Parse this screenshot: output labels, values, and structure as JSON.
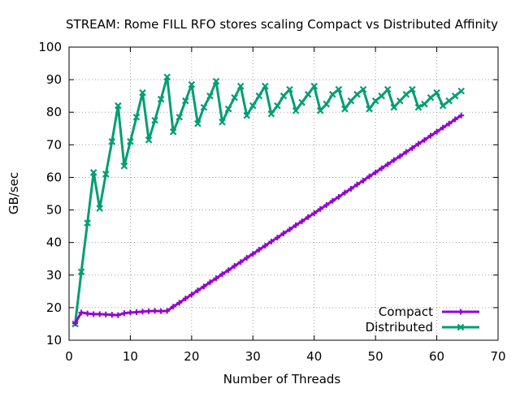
{
  "chart_data": {
    "type": "line",
    "title": "STREAM: Rome FILL RFO stores scaling Compact vs Distributed Affinity",
    "xlabel": "Number of Threads",
    "ylabel": "GB/sec",
    "xlim": [
      0,
      70
    ],
    "ylim": [
      10,
      100
    ],
    "xticks": [
      0,
      10,
      20,
      30,
      40,
      50,
      60,
      70
    ],
    "yticks": [
      10,
      20,
      30,
      40,
      50,
      60,
      70,
      80,
      90,
      100
    ],
    "grid": true,
    "legend_position": "bottom-right",
    "series": [
      {
        "name": "Compact",
        "color": "#9400d3",
        "marker": "plus",
        "x": [
          1,
          2,
          3,
          4,
          5,
          6,
          7,
          8,
          9,
          10,
          11,
          12,
          13,
          14,
          15,
          16,
          17,
          18,
          19,
          20,
          21,
          22,
          23,
          24,
          25,
          26,
          27,
          28,
          29,
          30,
          31,
          32,
          33,
          34,
          35,
          36,
          37,
          38,
          39,
          40,
          41,
          42,
          43,
          44,
          45,
          46,
          47,
          48,
          49,
          50,
          51,
          52,
          53,
          54,
          55,
          56,
          57,
          58,
          59,
          60,
          61,
          62,
          63,
          64
        ],
        "y": [
          15.2,
          18.5,
          18.2,
          18.0,
          18.0,
          17.9,
          17.8,
          17.7,
          18.3,
          18.5,
          18.6,
          18.8,
          18.9,
          19.0,
          18.9,
          19.0,
          20.3,
          21.5,
          22.8,
          24.0,
          25.3,
          26.5,
          27.8,
          29.0,
          30.3,
          31.5,
          32.8,
          34.0,
          35.3,
          36.5,
          37.8,
          39.0,
          40.3,
          41.5,
          42.8,
          44.0,
          45.3,
          46.5,
          47.8,
          49.0,
          50.3,
          51.5,
          52.8,
          54.0,
          55.3,
          56.5,
          57.8,
          59.0,
          60.3,
          61.5,
          62.8,
          64.0,
          65.3,
          66.5,
          67.8,
          69.0,
          70.3,
          71.5,
          72.8,
          74.0,
          75.3,
          76.5,
          77.8,
          79.0
        ]
      },
      {
        "name": "Distributed",
        "color": "#009e73",
        "marker": "x",
        "x": [
          1,
          2,
          3,
          4,
          5,
          6,
          7,
          8,
          9,
          10,
          11,
          12,
          13,
          14,
          15,
          16,
          17,
          18,
          19,
          20,
          21,
          22,
          23,
          24,
          25,
          26,
          27,
          28,
          29,
          30,
          31,
          32,
          33,
          34,
          35,
          36,
          37,
          38,
          39,
          40,
          41,
          42,
          43,
          44,
          45,
          46,
          47,
          48,
          49,
          50,
          51,
          52,
          53,
          54,
          55,
          56,
          57,
          58,
          59,
          60,
          61,
          62,
          63,
          64
        ],
        "y": [
          15.0,
          31.0,
          46.0,
          61.5,
          50.5,
          61.0,
          71.0,
          82.0,
          63.5,
          71.0,
          78.5,
          86.0,
          71.5,
          77.5,
          84.0,
          90.8,
          74.0,
          78.5,
          83.5,
          88.5,
          76.5,
          81.5,
          85.0,
          89.5,
          77.0,
          81.0,
          84.5,
          88.0,
          79.0,
          82.0,
          85.0,
          88.0,
          79.5,
          82.0,
          85.0,
          87.0,
          80.5,
          83.0,
          85.5,
          88.0,
          80.5,
          82.5,
          85.5,
          87.0,
          81.0,
          83.5,
          85.5,
          87.0,
          81.0,
          83.5,
          85.0,
          87.0,
          81.5,
          83.5,
          85.5,
          87.0,
          81.5,
          82.5,
          84.5,
          86.0,
          82.0,
          83.5,
          85.0,
          86.5
        ]
      }
    ]
  }
}
